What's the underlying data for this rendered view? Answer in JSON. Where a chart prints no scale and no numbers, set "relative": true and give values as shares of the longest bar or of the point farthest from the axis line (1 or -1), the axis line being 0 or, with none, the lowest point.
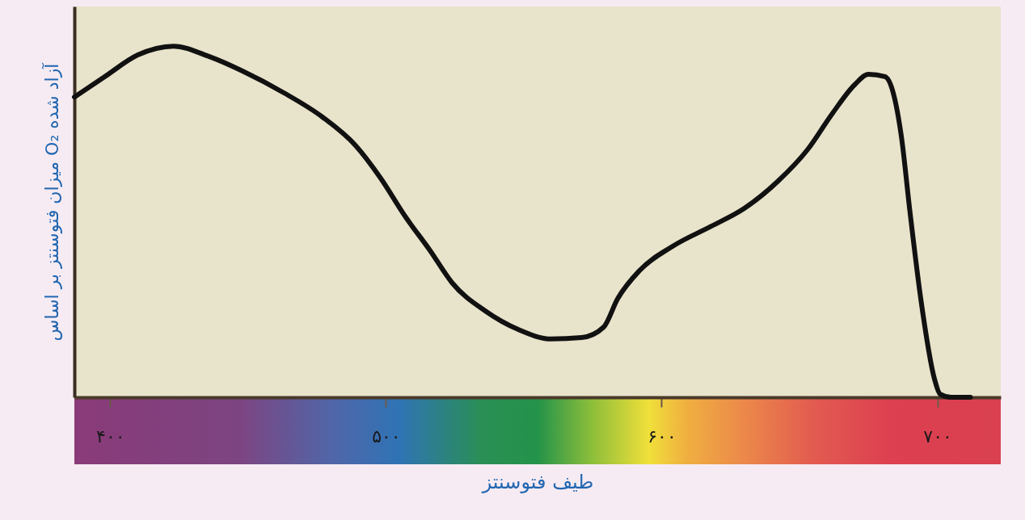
{
  "chart_data": {
    "type": "line",
    "relative": true,
    "xlabel": "طیف فتوسنتز",
    "ylabel": "میزان فتوسنتز بر اساس O₂ آزاد شده",
    "xlim": [
      387,
      723
    ],
    "xticks": [
      {
        "value": 400,
        "label": "۴۰۰"
      },
      {
        "value": 500,
        "label": "۵۰۰"
      },
      {
        "value": 600,
        "label": "۶۰۰"
      },
      {
        "value": 700,
        "label": "۷۰۰"
      }
    ],
    "x": [
      387,
      398,
      410,
      423,
      436,
      448,
      463,
      477,
      489,
      498,
      507,
      516,
      524,
      536,
      548,
      560,
      571,
      579,
      584,
      592,
      604,
      618,
      630,
      642,
      653,
      662,
      670,
      675,
      681,
      684,
      687,
      690,
      694,
      699,
      701,
      705,
      712
    ],
    "series": [
      {
        "color": "#111111",
        "values": [
          0.855,
          0.913,
          0.975,
          1,
          0.97,
          0.929,
          0.867,
          0.798,
          0.717,
          0.625,
          0.515,
          0.418,
          0.326,
          0.246,
          0.193,
          0.166,
          0.17,
          0.2,
          0.28,
          0.361,
          0.43,
          0.487,
          0.538,
          0.614,
          0.706,
          0.809,
          0.89,
          0.92,
          0.913,
          0.867,
          0.74,
          0.533,
          0.28,
          0.051,
          0.009,
          0,
          0
        ]
      }
    ],
    "line_style": "solid",
    "grid": false,
    "marker": "none"
  }
}
